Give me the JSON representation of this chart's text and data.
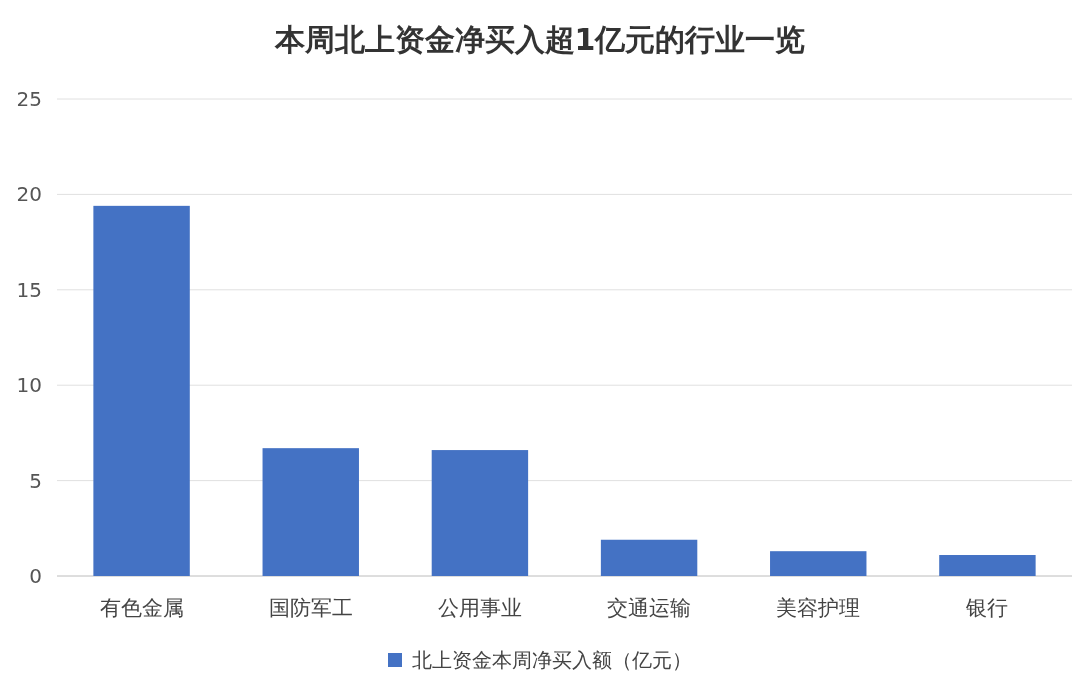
{
  "chart_data": {
    "type": "bar",
    "title": "本周北上资金净买入超1亿元的行业一览",
    "categories": [
      "有色金属",
      "国防军工",
      "公用事业",
      "交通运输",
      "美容护理",
      "银行"
    ],
    "series": [
      {
        "name": "北上资金本周净买入额（亿元）",
        "color": "#4472c4",
        "values": [
          19.4,
          6.7,
          6.6,
          1.9,
          1.3,
          1.1
        ]
      }
    ],
    "ylim": [
      0,
      25
    ],
    "yticks": [
      0,
      5,
      10,
      15,
      20,
      25
    ],
    "grid": "y",
    "legend": "bottom"
  }
}
